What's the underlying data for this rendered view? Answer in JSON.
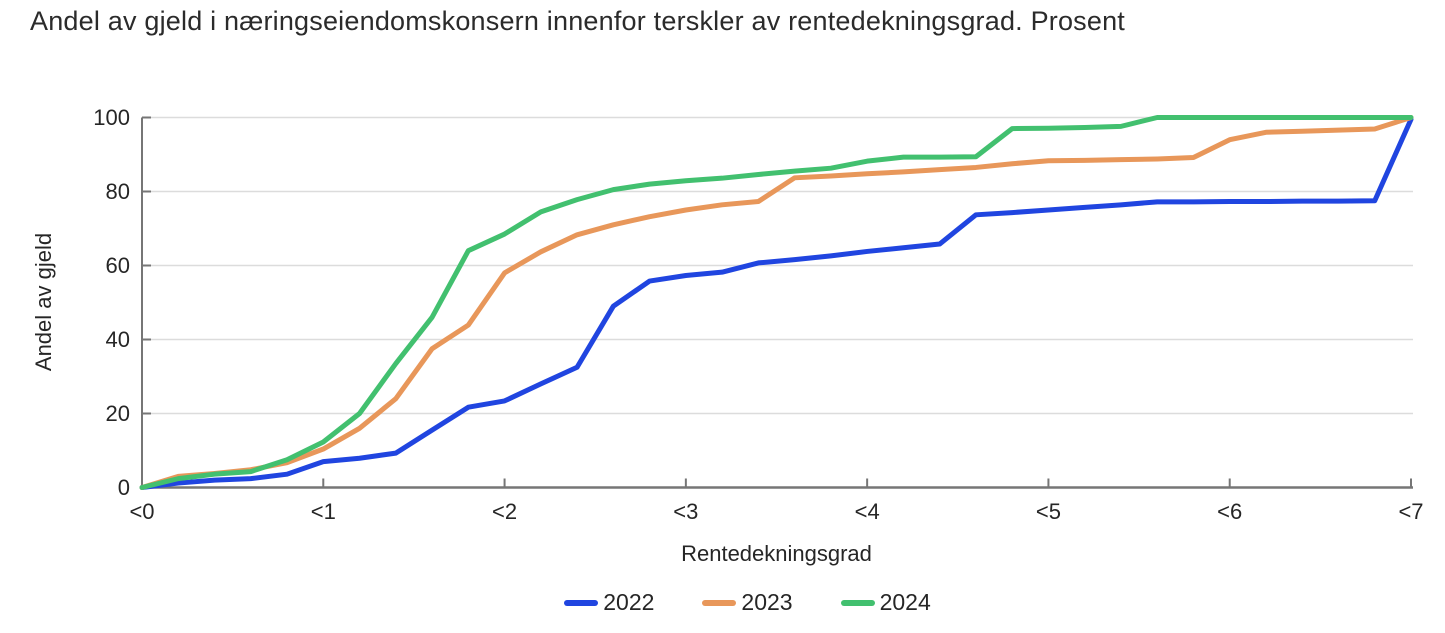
{
  "chart_data": {
    "type": "line",
    "title": "Andel av gjeld i næringseiendomskonsern innenfor terskler av rentedekningsgrad. Prosent",
    "xlabel": "Rentedekningsgrad",
    "ylabel": "Andel av gjeld",
    "x_tick_labels": [
      "<0",
      "<1",
      "<2",
      "<3",
      "<4",
      "<5",
      "<6",
      "<7"
    ],
    "y_ticks": [
      0,
      20,
      40,
      60,
      80,
      100
    ],
    "xlim": [
      0,
      7
    ],
    "ylim": [
      0,
      100
    ],
    "grid": "horizontal",
    "legend_position": "bottom-center",
    "x": [
      0,
      0.2,
      0.4,
      0.6,
      0.8,
      1,
      1.2,
      1.4,
      1.6,
      1.8,
      2,
      2.2,
      2.4,
      2.6,
      2.8,
      3,
      3.2,
      3.4,
      3.6,
      3.8,
      4,
      4.2,
      4.4,
      4.6,
      4.8,
      5,
      5.2,
      5.4,
      5.6,
      5.8,
      6,
      6.2,
      6.4,
      6.6,
      6.8,
      7
    ],
    "series": [
      {
        "name": "2022",
        "color": "#2045e0",
        "values": [
          0,
          1.2,
          2,
          2.4,
          3.6,
          7,
          7.9,
          9.3,
          15.5,
          21.7,
          23.4,
          28,
          32.5,
          49,
          55.8,
          57.3,
          58.2,
          60.7,
          61.6,
          62.6,
          63.8,
          64.8,
          65.8,
          73.7,
          74.3,
          75,
          75.7,
          76.4,
          77.2,
          77.2,
          77.3,
          77.3,
          77.4,
          77.4,
          77.5,
          99.5
        ]
      },
      {
        "name": "2023",
        "color": "#e8975a",
        "values": [
          0,
          3,
          3.8,
          4.8,
          6.7,
          10.4,
          16,
          24,
          37.5,
          43.9,
          58,
          63.7,
          68.3,
          71,
          73.2,
          75,
          76.4,
          77.3,
          83.7,
          84.2,
          84.8,
          85.3,
          85.9,
          86.5,
          87.5,
          88.3,
          88.4,
          88.6,
          88.8,
          89.2,
          94,
          96,
          96.3,
          96.6,
          96.9,
          100
        ]
      },
      {
        "name": "2024",
        "color": "#42c06f",
        "values": [
          0,
          2.4,
          3.6,
          4.3,
          7.5,
          12.3,
          20,
          33.5,
          46,
          64,
          68.5,
          74.5,
          77.8,
          80.5,
          82,
          82.9,
          83.6,
          84.6,
          85.5,
          86.3,
          88.2,
          89.3,
          89.3,
          89.4,
          97,
          97.1,
          97.3,
          97.6,
          100,
          100,
          100,
          100,
          100,
          100,
          100,
          100
        ]
      }
    ],
    "colors": {
      "grid": "#dcdcdc",
      "axis": "#767676",
      "text": "#262626",
      "background": "#ffffff"
    }
  }
}
